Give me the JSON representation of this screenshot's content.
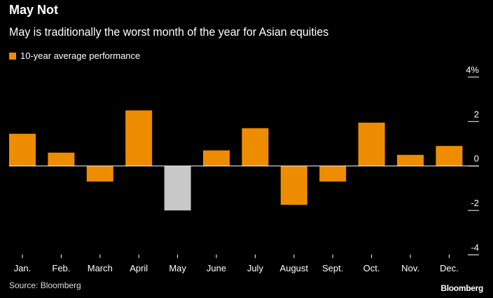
{
  "chart_data": {
    "type": "bar",
    "title": "May Not",
    "subtitle": "May is traditionally the worst month of the year for Asian equities",
    "legend": [
      {
        "name": "10-year average performance",
        "color": "#ee8c00"
      }
    ],
    "legend_placement": "top-left",
    "categories": [
      "Jan.",
      "Feb.",
      "March",
      "April",
      "May",
      "June",
      "July",
      "August",
      "Sept.",
      "Oct.",
      "Nov.",
      "Dec."
    ],
    "values": [
      1.45,
      0.6,
      -0.7,
      2.5,
      -2.0,
      0.7,
      1.7,
      -1.75,
      -0.7,
      1.95,
      0.5,
      0.9
    ],
    "highlight": {
      "category": "May",
      "color": "#c8c8c8"
    },
    "bar_color": "#ee8c00",
    "ylim": [
      -4,
      4
    ],
    "yticks": [
      4,
      2,
      0,
      -2,
      -4
    ],
    "ytick_labels": [
      "4%",
      "2",
      "0",
      "-2",
      "-4"
    ],
    "y_axis_side": "right",
    "grid": false,
    "source": "Source: Bloomberg",
    "brand": "Bloomberg"
  }
}
